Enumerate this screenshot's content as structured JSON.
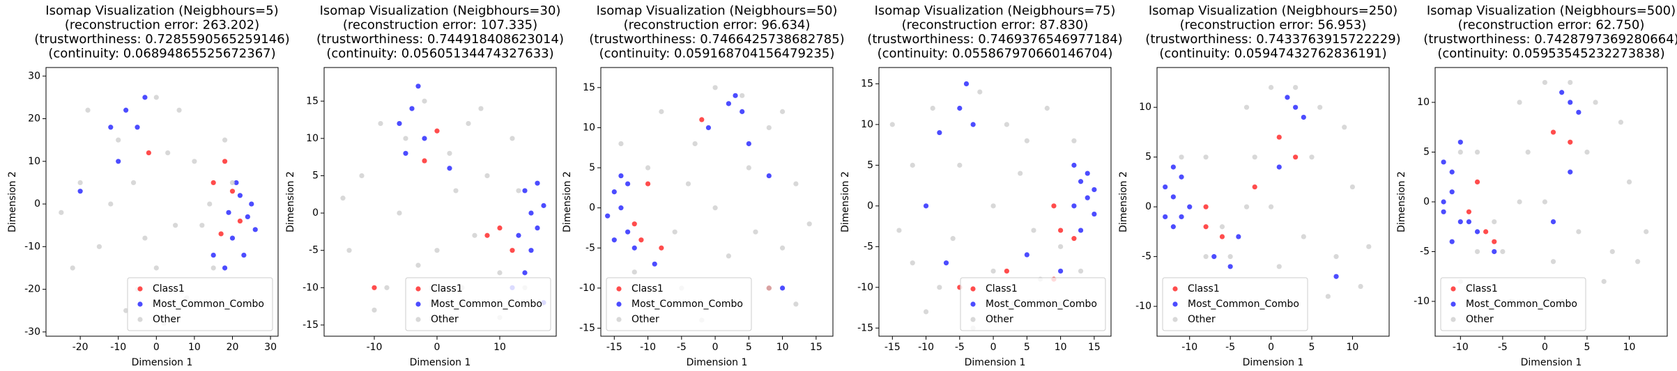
{
  "chart_data": [
    {
      "type": "scatter",
      "title": [
        "Isomap Visualization (Neigbhours=5)",
        "(reconstruction error: 263.202)",
        "(trustworthiness: 0.7285590565259146)",
        "(continuity: 0.06894865525672367)"
      ],
      "xlabel": "Dimension 1",
      "ylabel": "Dimension 2",
      "xlim": [
        -29,
        32
      ],
      "ylim": [
        -31,
        32
      ],
      "xticks": [
        -20,
        -10,
        0,
        10,
        20,
        30
      ],
      "yticks": [
        -30,
        -20,
        -10,
        0,
        10,
        20,
        30
      ],
      "legend": "lower right",
      "series": [
        {
          "name": "Class1",
          "color": "#ff0000",
          "x": [
            15,
            18,
            20,
            17,
            -2,
            22
          ],
          "y": [
            5,
            10,
            3,
            -7,
            12,
            -4
          ]
        },
        {
          "name": "Most_Common_Combo",
          "color": "#0000ff",
          "x": [
            22,
            24,
            20,
            25,
            23,
            21,
            19,
            26,
            -8,
            -5,
            -12,
            -3,
            -10,
            15,
            18,
            -20
          ],
          "y": [
            2,
            -3,
            -8,
            0,
            -12,
            5,
            -2,
            -6,
            22,
            18,
            18,
            25,
            10,
            -12,
            -15,
            3
          ]
        },
        {
          "name": "Other",
          "color": "#c8c8c8",
          "x": [
            -20,
            -15,
            -10,
            -5,
            0,
            5,
            10,
            15,
            -25,
            -12,
            3,
            -3,
            8,
            18,
            -18,
            12,
            -8,
            0,
            20,
            -22,
            6,
            -6,
            14,
            2
          ],
          "y": [
            5,
            -10,
            15,
            -20,
            25,
            -5,
            10,
            -15,
            -2,
            0,
            12,
            -8,
            -22,
            15,
            22,
            -5,
            -25,
            -15,
            5,
            -15,
            22,
            5,
            0,
            -28
          ]
        }
      ]
    },
    {
      "type": "scatter",
      "title": [
        "Isomap Visualization (Neigbhours=30)",
        "(reconstruction error: 107.335)",
        "(trustworthiness: 0.744918408623014)",
        "(continuity: 0.05605134474327633)"
      ],
      "xlabel": "Dimension 1",
      "ylabel": "Dimension 2",
      "xlim": [
        -18,
        19
      ],
      "ylim": [
        -16.5,
        19.5
      ],
      "xticks": [
        -10,
        0,
        10
      ],
      "yticks": [
        -15,
        -10,
        -5,
        0,
        5,
        10,
        15
      ],
      "legend": "lower right",
      "series": [
        {
          "name": "Class1",
          "color": "#ff0000",
          "x": [
            -2,
            10,
            8,
            12,
            -10,
            0
          ],
          "y": [
            7,
            -2,
            -3,
            -5,
            -10,
            11
          ]
        },
        {
          "name": "Most_Common_Combo",
          "color": "#0000ff",
          "x": [
            15,
            16,
            14,
            17,
            15,
            13,
            16,
            14,
            -4,
            -3,
            -6,
            -2,
            -5,
            2,
            12,
            17
          ],
          "y": [
            0,
            -2,
            3,
            1,
            -5,
            -3,
            4,
            -8,
            14,
            17,
            12,
            10,
            8,
            6,
            -10,
            -12
          ]
        },
        {
          "name": "Other",
          "color": "#c8c8c8",
          "x": [
            -12,
            -8,
            -5,
            0,
            5,
            10,
            -14,
            3,
            -2,
            8,
            12,
            -10,
            0,
            6,
            -6,
            14,
            -15,
            2,
            10,
            -3,
            7,
            -9,
            4,
            13
          ],
          "y": [
            5,
            -10,
            10,
            -5,
            12,
            -8,
            -5,
            3,
            15,
            5,
            10,
            -13,
            -12,
            -3,
            0,
            -10,
            2,
            8,
            -14,
            -7,
            14,
            12,
            -10,
            3
          ]
        }
      ]
    },
    {
      "type": "scatter",
      "title": [
        "Isomap Visualization (Neigbhours=50)",
        "(reconstruction error: 96.634)",
        "(trustworthiness: 0.7466425738682785)",
        "(continuity: 0.059168704156479235)"
      ],
      "xlabel": "Dimension 1",
      "ylabel": "Dimension 2",
      "xlim": [
        -17,
        17.5
      ],
      "ylim": [
        -16,
        17.5
      ],
      "xticks": [
        -15,
        -10,
        -5,
        0,
        5,
        10,
        15
      ],
      "yticks": [
        -15,
        -10,
        -5,
        0,
        5,
        10,
        15
      ],
      "legend": "lower left",
      "series": [
        {
          "name": "Class1",
          "color": "#ff0000",
          "x": [
            -12,
            -10,
            -8,
            -2,
            8,
            -11
          ],
          "y": [
            -2,
            3,
            -5,
            11,
            -10,
            -4
          ]
        },
        {
          "name": "Most_Common_Combo",
          "color": "#0000ff",
          "x": [
            -14,
            -15,
            -13,
            -16,
            -14,
            -12,
            -15,
            -13,
            2,
            4,
            3,
            -1,
            5,
            10,
            8,
            -9
          ],
          "y": [
            0,
            2,
            -3,
            -1,
            4,
            -5,
            -4,
            3,
            13,
            12,
            14,
            10,
            8,
            -10,
            4,
            -7
          ]
        },
        {
          "name": "Other",
          "color": "#c8c8c8",
          "x": [
            -10,
            -5,
            0,
            5,
            10,
            -8,
            8,
            12,
            -12,
            3,
            -3,
            6,
            14,
            -6,
            0,
            10,
            -2,
            8,
            -14,
            4,
            -10,
            12,
            2,
            -4
          ],
          "y": [
            5,
            -10,
            0,
            5,
            -5,
            12,
            10,
            3,
            -8,
            -12,
            8,
            -3,
            -2,
            -3,
            15,
            12,
            -14,
            -10,
            8,
            14,
            -12,
            -12,
            -6,
            3
          ]
        }
      ]
    },
    {
      "type": "scatter",
      "title": [
        "Isomap Visualization (Neigbhours=75)",
        "(reconstruction error: 87.830)",
        "(trustworthiness: 0.7469376546977184)",
        "(continuity: 0.05586797066014670​4)"
      ],
      "xlabel": "Dimension 1",
      "ylabel": "Dimension 2",
      "xlim": [
        -17,
        17.5
      ],
      "ylim": [
        -16,
        17
      ],
      "xticks": [
        -15,
        -10,
        -5,
        0,
        5,
        10,
        15
      ],
      "yticks": [
        -15,
        -10,
        -5,
        0,
        5,
        10,
        15
      ],
      "legend": "lower right",
      "series": [
        {
          "name": "Class1",
          "color": "#ff0000",
          "x": [
            9,
            10,
            2,
            -5,
            12,
            9
          ],
          "y": [
            0,
            -3,
            -8,
            -10,
            -4,
            -9
          ]
        },
        {
          "name": "Most_Common_Combo",
          "color": "#0000ff",
          "x": [
            14,
            13,
            15,
            12,
            14,
            13,
            15,
            12,
            -5,
            -4,
            -8,
            -3,
            -10,
            5,
            10,
            -7
          ],
          "y": [
            1,
            3,
            -1,
            0,
            4,
            -3,
            2,
            5,
            12,
            15,
            9,
            10,
            0,
            -6,
            -8,
            -7
          ]
        },
        {
          "name": "Other",
          "color": "#c8c8c8",
          "x": [
            -12,
            -8,
            0,
            5,
            10,
            -5,
            8,
            -14,
            3,
            -2,
            6,
            12,
            -10,
            0,
            -6,
            10,
            -15,
            4,
            -3,
            13,
            7,
            -9,
            2,
            -12
          ],
          "y": [
            5,
            -10,
            0,
            8,
            -5,
            5,
            12,
            -3,
            -12,
            14,
            -3,
            8,
            -13,
            -8,
            -4,
            -12,
            10,
            4,
            -15,
            -8,
            -9,
            12,
            10,
            -7
          ]
        }
      ]
    },
    {
      "type": "scatter",
      "title": [
        "Isomap Visualization (Neigbhours=250)",
        "(reconstruction error: 56.953)",
        "(trustworthiness: 0.7433763915722229)",
        "(continuity: 0.05947432762836191)"
      ],
      "xlabel": "Dimension 1",
      "ylabel": "Dimension 2",
      "xlim": [
        -14,
        14.5
      ],
      "ylim": [
        -13,
        14
      ],
      "xticks": [
        -10,
        -5,
        0,
        5,
        10
      ],
      "yticks": [
        -10,
        -5,
        0,
        5,
        10
      ],
      "legend": "lower left",
      "series": [
        {
          "name": "Class1",
          "color": "#ff0000",
          "x": [
            -8,
            -6,
            -2,
            -8,
            1,
            3
          ],
          "y": [
            -2,
            -3,
            2,
            0,
            7,
            5
          ]
        },
        {
          "name": "Most_Common_Combo",
          "color": "#0000ff",
          "x": [
            -12,
            -11,
            -13,
            -12,
            -11,
            -10,
            -12,
            -13,
            3,
            4,
            2,
            -5,
            -7,
            -4,
            1,
            8
          ],
          "y": [
            1,
            -1,
            2,
            -2,
            3,
            0,
            4,
            -1,
            10,
            9,
            11,
            -6,
            -5,
            -3,
            4,
            -7
          ]
        },
        {
          "name": "Other",
          "color": "#c8c8c8",
          "x": [
            -8,
            -5,
            0,
            5,
            8,
            -3,
            6,
            10,
            -10,
            2,
            -2,
            4,
            11,
            -6,
            0,
            9,
            -4,
            7,
            -11,
            3,
            -8,
            12,
            1,
            -3
          ],
          "y": [
            5,
            -5,
            0,
            5,
            -5,
            10,
            10,
            2,
            -8,
            -10,
            5,
            -3,
            -8,
            -2,
            12,
            8,
            -10,
            -9,
            5,
            12,
            -5,
            -4,
            -6,
            0
          ]
        }
      ]
    },
    {
      "type": "scatter",
      "title": [
        "Isomap Visualization (Neigbhours=500)",
        "(reconstruction error: 62.750)",
        "(trustworthiness: 0.7428797369280664)",
        "(continuity: 0.05953545232273838)"
      ],
      "xlabel": "Dimension 1",
      "ylabel": "Dimension 2",
      "xlim": [
        -13,
        14.5
      ],
      "ylim": [
        -13.5,
        13.5
      ],
      "xticks": [
        -10,
        -5,
        0,
        5,
        10
      ],
      "yticks": [
        -10,
        -5,
        0,
        5,
        10
      ],
      "legend": "lower left",
      "series": [
        {
          "name": "Class1",
          "color": "#ff0000",
          "x": [
            -9,
            -7,
            -8,
            1,
            3,
            -6
          ],
          "y": [
            -1,
            -3,
            2,
            7,
            6,
            -4
          ]
        },
        {
          "name": "Most_Common_Combo",
          "color": "#0000ff",
          "x": [
            -11,
            -12,
            -11,
            -10,
            -12,
            -11,
            -10,
            -12,
            3,
            2,
            4,
            -8,
            -6,
            -9,
            3,
            1
          ],
          "y": [
            1,
            -1,
            3,
            -2,
            4,
            -4,
            6,
            0,
            10,
            11,
            9,
            -3,
            -5,
            -2,
            3,
            -2
          ]
        },
        {
          "name": "Other",
          "color": "#c8c8c8",
          "x": [
            -8,
            -5,
            0,
            5,
            8,
            -3,
            6,
            10,
            -10,
            2,
            -2,
            4,
            11,
            -6,
            0,
            9,
            -4,
            7,
            -10,
            3,
            -8,
            12,
            1,
            -3
          ],
          "y": [
            5,
            -5,
            0,
            5,
            -5,
            10,
            10,
            2,
            -8,
            -10,
            5,
            -3,
            -6,
            -2,
            12,
            8,
            -10,
            -8,
            5,
            12,
            -5,
            -3,
            -6,
            0
          ]
        }
      ]
    }
  ]
}
